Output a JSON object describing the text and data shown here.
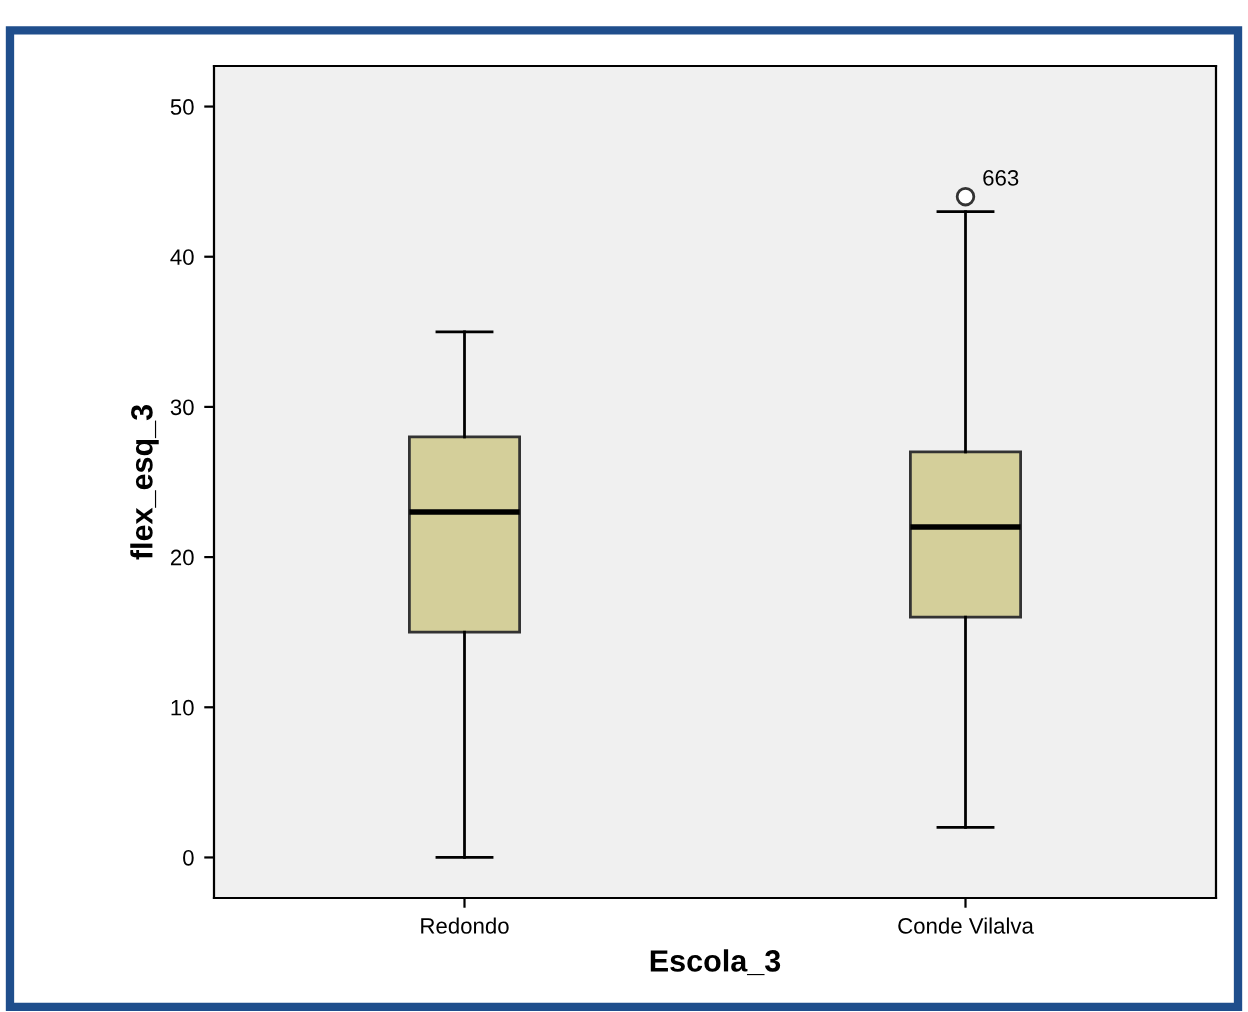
{
  "chart_data": {
    "type": "box",
    "xlabel": "Escola_3",
    "ylabel": "flex_esq_3",
    "categories": [
      "Redondo",
      "Conde Vilalva"
    ],
    "boxes": [
      {
        "low": 0,
        "q1": 15,
        "median": 23,
        "q3": 28,
        "high": 35
      },
      {
        "low": 2,
        "q1": 16,
        "median": 22,
        "q3": 27,
        "high": 43,
        "outliers": [
          44
        ]
      }
    ],
    "color": "#d4cf9a",
    "ylim": [
      -2.7,
      52.7
    ],
    "yticks": [
      0,
      10,
      20,
      30,
      40,
      50
    ],
    "grid": false,
    "annotations": [
      "663"
    ]
  }
}
